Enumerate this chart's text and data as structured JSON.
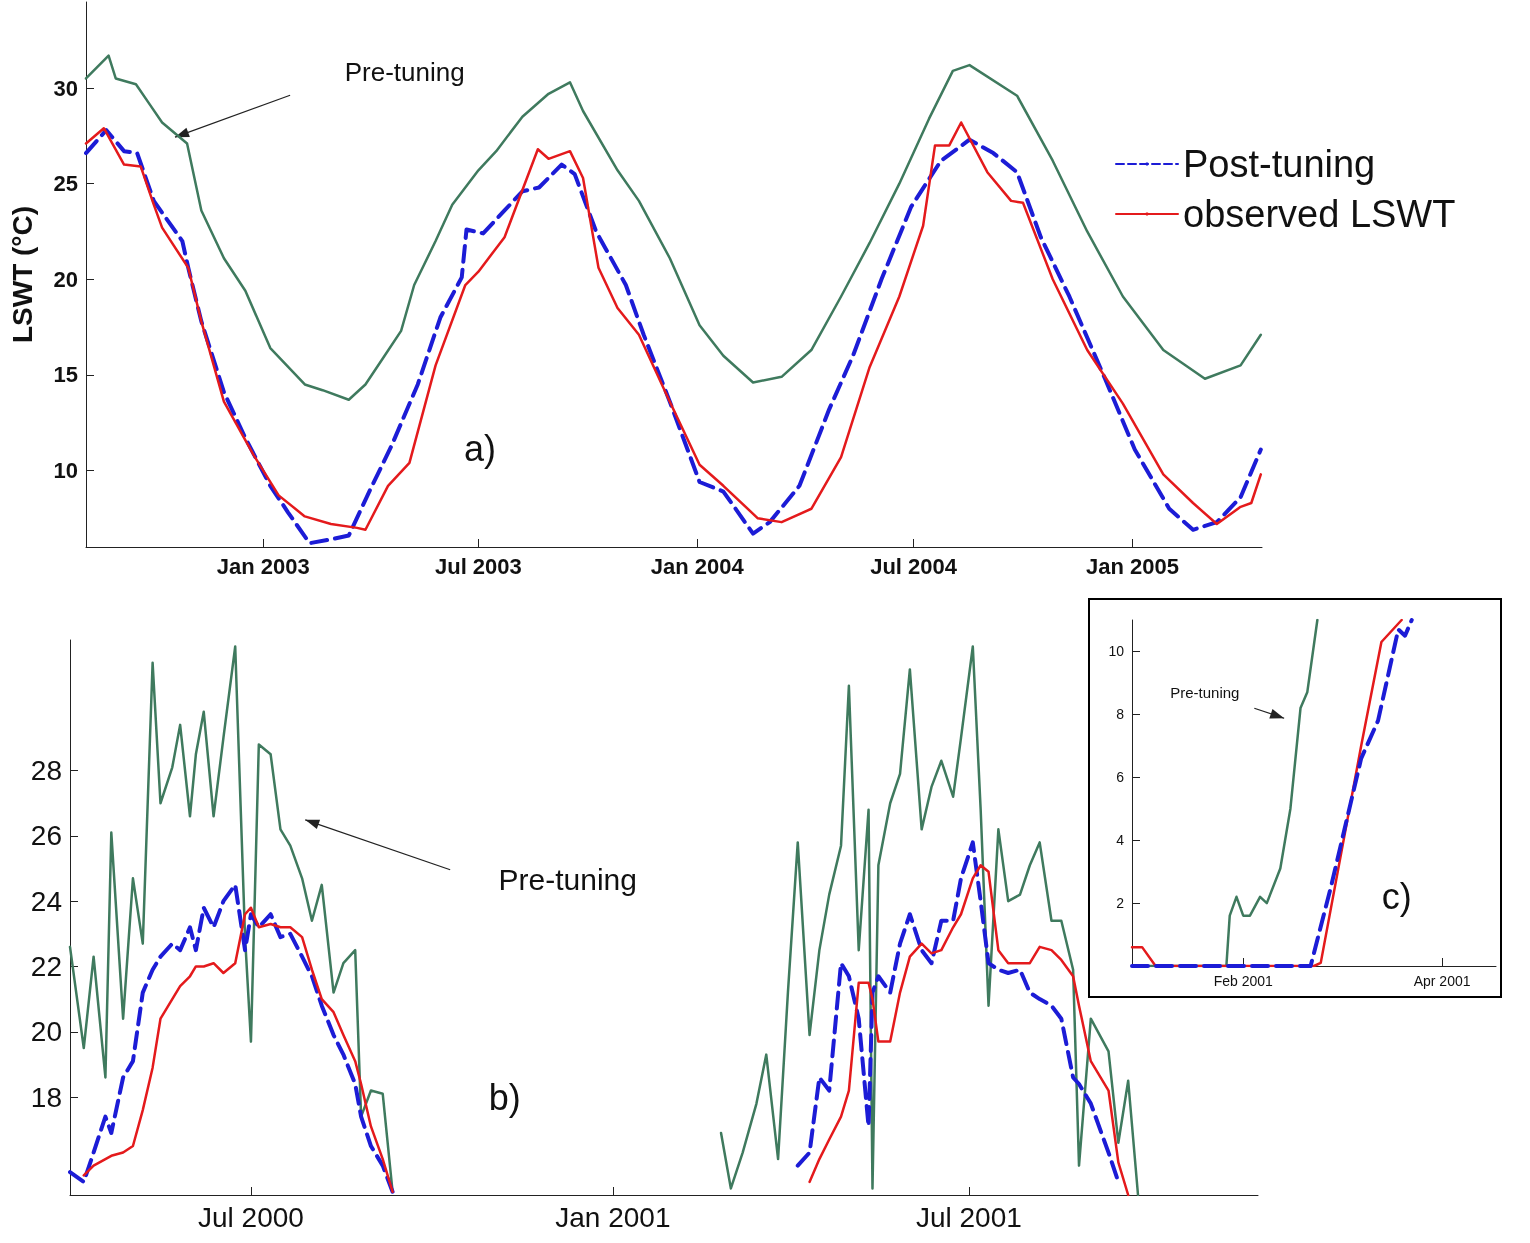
{
  "chart_data": [
    {
      "type": "line",
      "ylabel": "LSWT (°C)",
      "legend": "right",
      "xlim": [
        "2002-08-05",
        "2005-04-20"
      ],
      "ylim": [
        6,
        34.5
      ],
      "xticks": [
        {
          "value": "2003-01-01",
          "label": "Jan 2003"
        },
        {
          "value": "2003-07-01",
          "label": "Jul 2003"
        },
        {
          "value": "2004-01-01",
          "label": "Jan 2004"
        },
        {
          "value": "2004-07-01",
          "label": "Jul 2004"
        },
        {
          "value": "2005-01-01",
          "label": "Jan 2005"
        }
      ],
      "yticks": [
        10,
        15,
        20,
        25,
        30
      ],
      "annotations": [
        "Pre-tuning",
        "a)"
      ],
      "series": [
        {
          "color": "#3f7a5e",
          "x": [
            "2002-08-05",
            "2002-08-24",
            "2002-08-30",
            "2002-09-16",
            "2002-09-27",
            "2002-10-08",
            "2002-10-29",
            "2002-11-10",
            "2002-11-29",
            "2002-12-17",
            "2003-01-07",
            "2003-02-05",
            "2003-02-20",
            "2003-03-14",
            "2003-03-28",
            "2003-04-12",
            "2003-04-27",
            "2003-05-08",
            "2003-05-26",
            "2003-06-09",
            "2003-07-01",
            "2003-07-16",
            "2003-08-07",
            "2003-08-29",
            "2003-09-16",
            "2003-09-27",
            "2003-10-26",
            "2003-11-13",
            "2003-12-09",
            "2004-01-03",
            "2004-01-23",
            "2004-02-17",
            "2004-03-12",
            "2004-04-06",
            "2004-05-01",
            "2004-05-25",
            "2004-06-19",
            "2004-07-14",
            "2004-08-03",
            "2004-08-17",
            "2004-09-26",
            "2004-10-26",
            "2004-11-24",
            "2004-12-24",
            "2005-01-27",
            "2005-03-03",
            "2005-04-02",
            "2005-04-19"
          ],
          "values": [
            30.5,
            31.7,
            30.5,
            30.2,
            29.2,
            28.2,
            27.1,
            23.6,
            21.1,
            19.4,
            16.4,
            14.5,
            14.2,
            13.7,
            14.5,
            15.9,
            17.3,
            19.7,
            22,
            23.9,
            25.7,
            26.7,
            28.5,
            29.7,
            30.3,
            28.8,
            25.7,
            24.1,
            21.1,
            17.6,
            16.0,
            14.6,
            14.9,
            16.3,
            19.1,
            21.9,
            25.0,
            28.4,
            30.9,
            31.2,
            29.6,
            26.2,
            22.5,
            19.1,
            16.3,
            14.8,
            15.5,
            17.1
          ]
        },
        {
          "name": "Post-tuning",
          "color": "#1c1cd6",
          "line_style": "dashed",
          "x": [
            "2002-08-05",
            "2002-08-22",
            "2002-09-06",
            "2002-09-17",
            "2002-10-01",
            "2002-10-25",
            "2002-10-30",
            "2002-11-10",
            "2002-11-29",
            "2002-12-17",
            "2003-01-07",
            "2003-01-22",
            "2003-02-09",
            "2003-02-27",
            "2003-03-14",
            "2003-04-01",
            "2003-04-19",
            "2003-05-11",
            "2003-05-30",
            "2003-06-17",
            "2003-06-21",
            "2003-07-05",
            "2003-07-23",
            "2003-08-07",
            "2003-08-21",
            "2003-09-09",
            "2003-09-20",
            "2003-10-08",
            "2003-11-02",
            "2003-11-17",
            "2003-12-09",
            "2004-01-03",
            "2004-01-23",
            "2004-02-17",
            "2004-03-02",
            "2004-03-27",
            "2004-04-21",
            "2004-05-11",
            "2004-06-04",
            "2004-06-29",
            "2004-07-24",
            "2004-08-17",
            "2004-09-06",
            "2004-09-26",
            "2004-10-16",
            "2004-11-09",
            "2004-12-09",
            "2005-01-03",
            "2005-02-01",
            "2005-02-21",
            "2005-03-13",
            "2005-04-02",
            "2005-04-19"
          ],
          "values": [
            26.6,
            27.8,
            26.7,
            26.6,
            24.1,
            22,
            20.6,
            17.8,
            14.1,
            11.7,
            9.2,
            7.8,
            6.2,
            6.4,
            6.6,
            9,
            11.3,
            14.5,
            18,
            20.1,
            22.6,
            22.4,
            23.6,
            24.6,
            24.8,
            26,
            25.5,
            22.5,
            19.7,
            17.1,
            13.6,
            9.4,
            8.9,
            6.7,
            7.3,
            9.2,
            13.2,
            16.0,
            20.0,
            23.8,
            26.2,
            27.3,
            26.6,
            25.6,
            22.2,
            19.1,
            14.8,
            11.1,
            8.0,
            6.9,
            7.3,
            8.6,
            11.1
          ]
        },
        {
          "name": "observed LSWT",
          "color": "#e41a1c",
          "x": [
            "2002-08-05",
            "2002-08-20",
            "2002-09-06",
            "2002-09-20",
            "2002-10-01",
            "2002-10-08",
            "2002-10-30",
            "2002-11-10",
            "2002-11-29",
            "2002-12-24",
            "2003-01-14",
            "2003-02-05",
            "2003-02-27",
            "2003-03-21",
            "2003-03-28",
            "2003-04-16",
            "2003-05-04",
            "2003-05-26",
            "2003-06-20",
            "2003-07-01",
            "2003-07-23",
            "2003-08-20",
            "2003-08-29",
            "2003-09-16",
            "2003-09-27",
            "2003-10-10",
            "2003-10-26",
            "2003-11-13",
            "2003-12-09",
            "2004-01-03",
            "2004-01-23",
            "2004-02-21",
            "2004-03-12",
            "2004-04-06",
            "2004-05-01",
            "2004-05-25",
            "2004-06-19",
            "2004-07-09",
            "2004-07-19",
            "2004-07-31",
            "2004-08-10",
            "2004-09-01",
            "2004-09-21",
            "2004-10-01",
            "2004-10-26",
            "2004-11-24",
            "2004-12-24",
            "2005-01-27",
            "2005-02-21",
            "2005-03-13",
            "2005-04-02",
            "2005-04-11",
            "2005-04-19"
          ],
          "values": [
            27.1,
            27.9,
            26,
            25.9,
            23.9,
            22.7,
            20.6,
            17.8,
            13.6,
            10.8,
            8.7,
            7.6,
            7.2,
            7.0,
            6.9,
            9.2,
            10.4,
            15.5,
            19.7,
            20.4,
            22.2,
            26.8,
            26.3,
            26.7,
            25.3,
            20.6,
            18.5,
            17.1,
            13.6,
            10.3,
            9.2,
            7.5,
            7.3,
            8.0,
            10.7,
            15.4,
            19.1,
            22.8,
            27.0,
            27.0,
            28.2,
            25.6,
            24.1,
            24.0,
            20.0,
            16.3,
            13.5,
            9.8,
            8.3,
            7.2,
            8.1,
            8.3,
            9.8
          ]
        }
      ]
    },
    {
      "type": "line",
      "xlim": [
        "2000-03-31",
        "2001-11-25"
      ],
      "ylim": [
        15,
        32
      ],
      "xticks": [
        {
          "value": "2000-07-01",
          "label": "Jul 2000"
        },
        {
          "value": "2001-01-01",
          "label": "Jan 2001"
        },
        {
          "value": "2001-07-01",
          "label": "Jul 2001"
        }
      ],
      "yticks": [
        18,
        20,
        22,
        24,
        26,
        28
      ],
      "annotations": [
        "Pre-tuning",
        "b)"
      ],
      "x": [
        "2000-03-31",
        "2000-04-07",
        "2000-04-12",
        "2000-04-18",
        "2000-04-21",
        "2000-04-27",
        "2000-05-02",
        "2000-05-07",
        "2000-05-12",
        "2000-05-16",
        "2000-05-22",
        "2000-05-26",
        "2000-05-31",
        "2000-06-03",
        "2000-06-07",
        "2000-06-12",
        "2000-06-17",
        "2000-06-23",
        "2000-06-28",
        "2000-07-01",
        "2000-07-05",
        "2000-07-11",
        "2000-07-16",
        "2000-07-21",
        "2000-07-27",
        "2000-08-01",
        "2000-08-06",
        "2000-08-12",
        "2000-08-17",
        "2000-08-23",
        "2000-08-26",
        "2000-08-31",
        "2000-09-06",
        "2000-09-11",
        "2000-12-01",
        "2001-02-25",
        "2001-03-02",
        "2001-03-08",
        "2001-03-15",
        "2001-03-20",
        "2001-03-26",
        "2001-03-31",
        "2001-04-05",
        "2001-04-11",
        "2001-04-16",
        "2001-04-21",
        "2001-04-27",
        "2001-05-01",
        "2001-05-06",
        "2001-05-11",
        "2001-05-13",
        "2001-05-16",
        "2001-05-22",
        "2001-05-27",
        "2001-06-01",
        "2001-06-07",
        "2001-06-12",
        "2001-06-17",
        "2001-06-23",
        "2001-06-27",
        "2001-07-03",
        "2001-07-07",
        "2001-07-11",
        "2001-07-16",
        "2001-07-21",
        "2001-07-27",
        "2001-08-01",
        "2001-08-06",
        "2001-08-12",
        "2001-08-17",
        "2001-08-23",
        "2001-08-26",
        "2001-09-01",
        "2001-09-10",
        "2001-09-15",
        "2001-09-20",
        "2001-09-25"
      ],
      "series": [
        {
          "color": "#3f7a5e",
          "values": [
            22.6,
            19.5,
            22.3,
            18.6,
            26.1,
            20.4,
            24.7,
            22.7,
            31.3,
            27,
            28.1,
            29.4,
            26.6,
            28.5,
            29.8,
            26.6,
            29,
            31.8,
            22.9,
            19.7,
            28.8,
            28.5,
            26.2,
            25.7,
            24.7,
            23.4,
            24.5,
            21.2,
            22.1,
            22.5,
            17.4,
            18.2,
            18.1,
            15.1,
            null,
            16.9,
            15.2,
            16.3,
            17.8,
            19.3,
            16.1,
            21.2,
            25.8,
            19.9,
            22.5,
            24.2,
            25.7,
            30.6,
            22.5,
            26.8,
            15.2,
            25.1,
            27,
            27.9,
            31.1,
            26.2,
            27.5,
            28.3,
            27.2,
            29,
            31.8,
            26.8,
            20.8,
            26.2,
            24,
            24.2,
            25.1,
            25.8,
            23.4,
            23.4,
            21.9,
            15.9,
            20.4,
            19.4,
            16.6,
            18.5,
            15
          ]
        },
        {
          "color": "#1c1cd6",
          "line_style": "dashed",
          "values": [
            15.7,
            15.4,
            16.3,
            17.4,
            16.9,
            18.6,
            19.1,
            21.2,
            21.9,
            22.3,
            22.7,
            22.5,
            23.2,
            22.5,
            23.8,
            23.2,
            24,
            24.5,
            22.5,
            23.6,
            23.2,
            23.6,
            22.9,
            23,
            22.3,
            21.7,
            20.8,
            19.9,
            19.3,
            18.4,
            17.4,
            16.5,
            15.9,
            15.1,
            null,
            null,
            null,
            null,
            null,
            null,
            null,
            null,
            15.9,
            16.3,
            18.6,
            18.2,
            22.1,
            21.7,
            20.4,
            17.1,
            21.2,
            21.7,
            21.2,
            22.7,
            23.6,
            22.5,
            22.1,
            23.4,
            23.4,
            24.7,
            25.8,
            24,
            22.1,
            21.9,
            21.8,
            21.9,
            21.2,
            21,
            20.8,
            20.4,
            18.6,
            18.4,
            17.8,
            16.3,
            15.4,
            null,
            null
          ]
        },
        {
          "color": "#e41a1c",
          "values": [
            null,
            15.6,
            15.9,
            16.1,
            16.2,
            16.3,
            16.5,
            17.6,
            18.9,
            20.4,
            21,
            21.4,
            21.7,
            22,
            22,
            22.1,
            21.8,
            22.1,
            23.6,
            23.8,
            23.2,
            23.3,
            23.2,
            23.2,
            22.9,
            21.9,
            21,
            20.6,
            19.9,
            19.1,
            18.4,
            17.1,
            16.1,
            15.1,
            null,
            null,
            null,
            null,
            null,
            null,
            null,
            null,
            null,
            15.4,
            16.1,
            16.7,
            17.4,
            18.2,
            21.5,
            21.5,
            21,
            19.7,
            19.7,
            21.2,
            22.3,
            22.7,
            22.4,
            22.5,
            23.2,
            23.6,
            24.7,
            25.1,
            24.9,
            22.5,
            22.1,
            22.1,
            22.1,
            22.6,
            22.5,
            22.2,
            21.7,
            20.8,
            19.1,
            18.2,
            16,
            15,
            null
          ]
        }
      ]
    },
    {
      "type": "line",
      "xlim": [
        "2000-12-30",
        "2001-04-17"
      ],
      "ylim": [
        0,
        11
      ],
      "xticks": [
        {
          "value": "2001-02-01",
          "label": "Feb 2001"
        },
        {
          "value": "2001-04-01",
          "label": "Apr 2001"
        }
      ],
      "yticks": [
        2,
        4,
        6,
        8,
        10
      ],
      "annotations": [
        "Pre-tuning",
        "c)"
      ],
      "series": [
        {
          "color": "#3f7a5e",
          "x": [
            "2000-12-30",
            "2001-01-27",
            "2001-01-28",
            "2001-01-30",
            "2001-02-01",
            "2001-02-03",
            "2001-02-06",
            "2001-02-08",
            "2001-02-12",
            "2001-02-15",
            "2001-02-18",
            "2001-02-20",
            "2001-02-23"
          ],
          "values": [
            0,
            0,
            1.6,
            2.2,
            1.6,
            1.6,
            2.2,
            2.0,
            3.1,
            5.0,
            8.2,
            8.7,
            11
          ]
        },
        {
          "color": "#e41a1c",
          "x": [
            "2000-12-30",
            "2001-01-02",
            "2001-01-06",
            "2001-02-22",
            "2001-02-24",
            "2001-03-08",
            "2001-03-14",
            "2001-03-20"
          ],
          "values": [
            0.6,
            0.6,
            0,
            0,
            0.1,
            7.0,
            10.3,
            11
          ]
        },
        {
          "color": "#1c1cd6",
          "line_style": "dashed",
          "x": [
            "2000-12-30",
            "2001-02-21",
            "2001-02-27",
            "2001-03-08",
            "2001-03-13",
            "2001-03-19",
            "2001-03-21",
            "2001-03-23"
          ],
          "values": [
            0,
            0,
            2.5,
            6.6,
            7.8,
            10.7,
            10.5,
            11
          ]
        }
      ]
    }
  ]
}
